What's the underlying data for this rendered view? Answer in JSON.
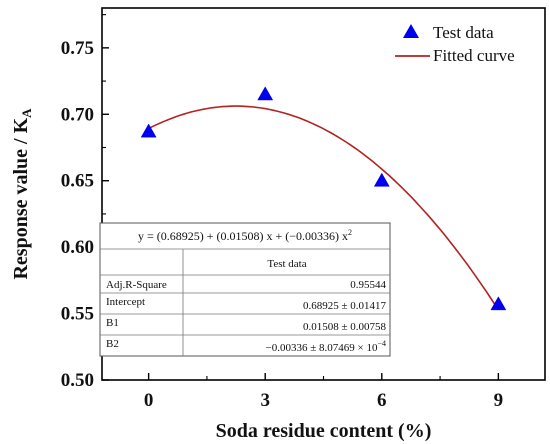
{
  "chart_data": {
    "type": "scatter",
    "xlabel": "Soda residue content (%)",
    "ylabel_main": "Response value / K",
    "ylabel_sub": "A",
    "xlim": [
      -1.2,
      10.2
    ],
    "ylim": [
      0.5,
      0.78
    ],
    "xticks": [
      "0",
      "3",
      "6",
      "9"
    ],
    "yticks": [
      "0.50",
      "0.55",
      "0.60",
      "0.65",
      "0.70",
      "0.75"
    ],
    "grid": false,
    "legend_position": "top-right",
    "series": [
      {
        "name": "Test data",
        "kind": "scatter",
        "marker": "triangle",
        "color": "#0000ee",
        "x": [
          0,
          3,
          6,
          9
        ],
        "y": [
          0.687,
          0.715,
          0.65,
          0.557
        ]
      },
      {
        "name": "Fitted curve",
        "kind": "line",
        "color": "#b22222",
        "fit": {
          "intercept": 0.68925,
          "b1": 0.01508,
          "b2": -0.00336
        },
        "x_range": [
          0,
          9
        ]
      }
    ],
    "stats_table": {
      "equation": "y = (0.68925) + (0.01508) x + (−0.00336) x",
      "equation_exponent": "2",
      "column_header": "Test data",
      "rows": [
        {
          "label": "Adj.R-Square",
          "value": "0.95544"
        },
        {
          "label": "Intercept",
          "value": "0.68925 ± 0.01417"
        },
        {
          "label": "B1",
          "value": "0.01508 ± 0.00758"
        },
        {
          "label": "B2",
          "value": "−0.00336 ± 8.07469 × 10",
          "exponent": "−4"
        }
      ]
    }
  }
}
